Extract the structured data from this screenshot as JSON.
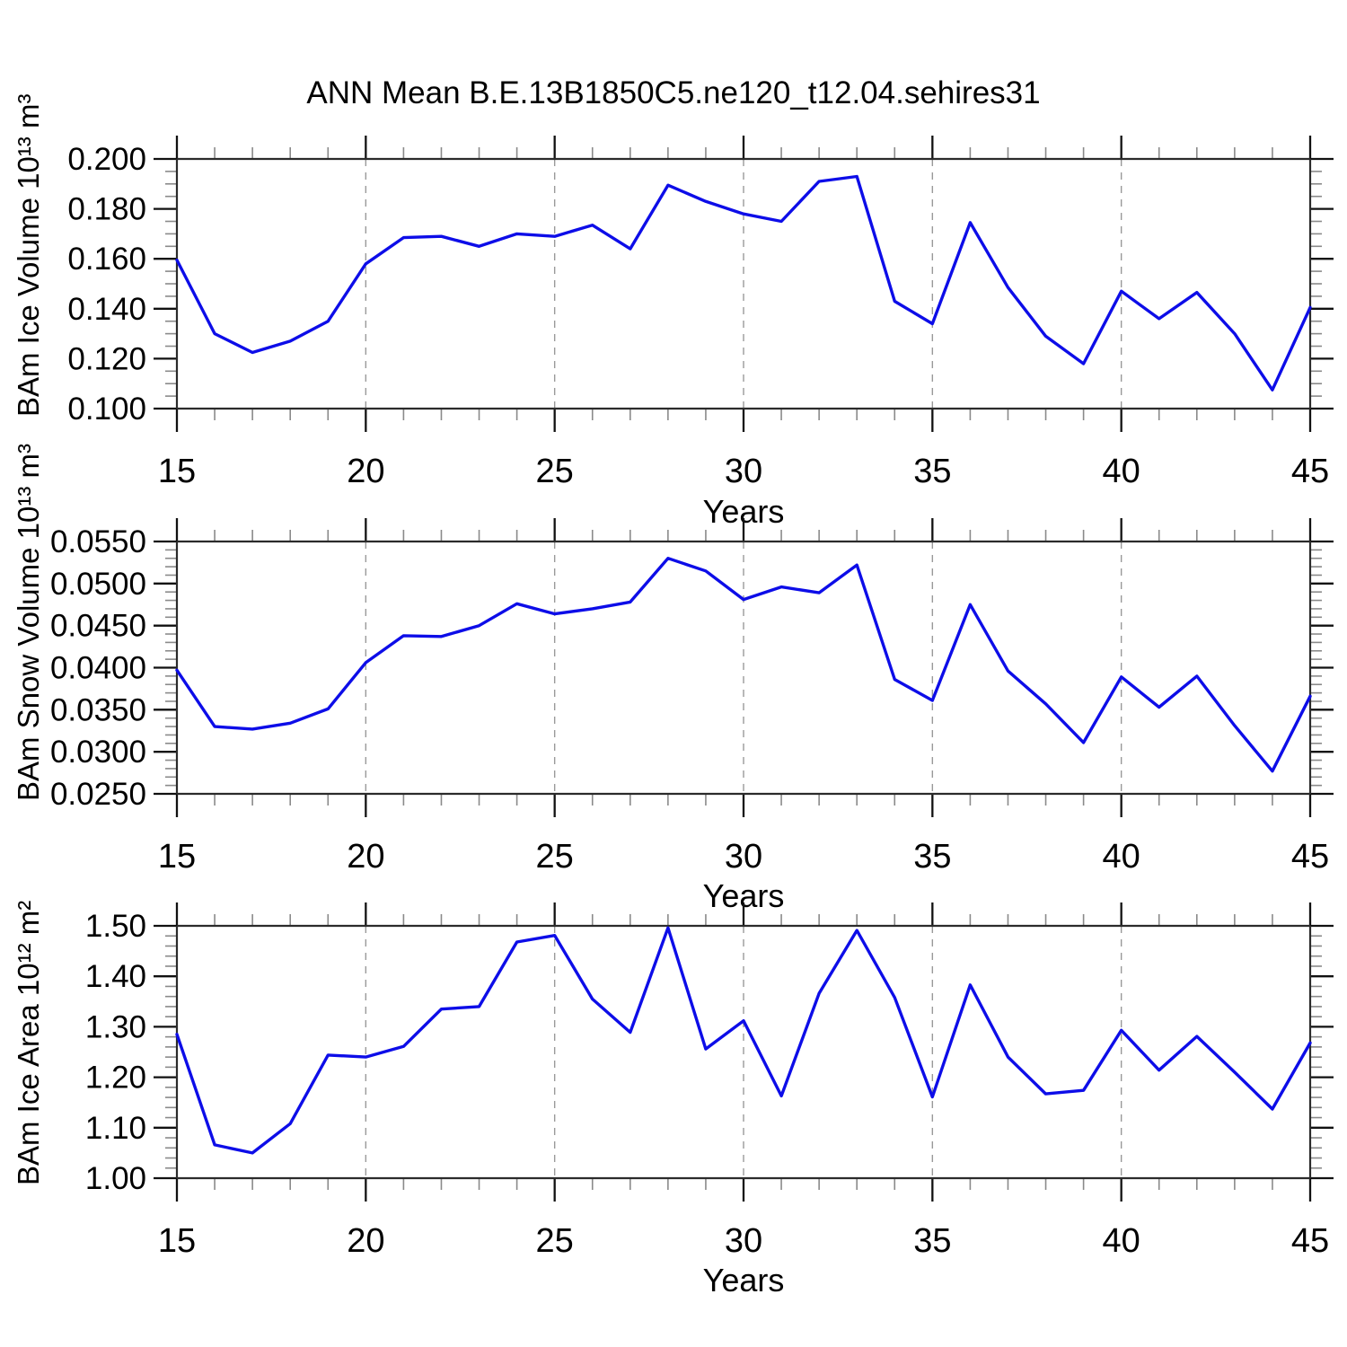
{
  "title": "ANN Mean B.E.13B1850C5.ne120_t12.04.sehires31",
  "line_color": "#0d0de8",
  "grid_color": "#999999",
  "minor_tick_color": "#8a8a8a",
  "major_tick_color": "#111111",
  "frame_color": "#2b2b2b",
  "chart_data": [
    {
      "type": "line",
      "panel": 1,
      "ylabel": "BAm Ice Volume 10¹³ m³",
      "xlabel": "Years",
      "xlim": [
        15,
        45
      ],
      "ylim": [
        0.1,
        0.2
      ],
      "xticks": [
        15,
        20,
        25,
        30,
        35,
        40,
        45
      ],
      "xtick_labels": [
        "15",
        "20",
        "25",
        "30",
        "35",
        "40",
        "45"
      ],
      "xminor": 1,
      "grid_years": [
        20,
        25,
        30,
        35,
        40
      ],
      "yticks": [
        0.2,
        0.18,
        0.16,
        0.14,
        0.12,
        0.1
      ],
      "ytick_labels": [
        "0.200",
        "0.180",
        "0.160",
        "0.140",
        "0.120",
        "0.100"
      ],
      "yminor": 0.005,
      "x": [
        15,
        16,
        17,
        18,
        19,
        20,
        21,
        22,
        23,
        24,
        25,
        26,
        27,
        28,
        29,
        30,
        31,
        32,
        33,
        34,
        35,
        36,
        37,
        38,
        39,
        40,
        41,
        42,
        43,
        44,
        45
      ],
      "values": [
        0.1595,
        0.13,
        0.1225,
        0.127,
        0.135,
        0.158,
        0.1685,
        0.169,
        0.165,
        0.17,
        0.169,
        0.1735,
        0.164,
        0.1895,
        0.183,
        0.178,
        0.175,
        0.191,
        0.193,
        0.143,
        0.134,
        0.1745,
        0.1485,
        0.129,
        0.118,
        0.147,
        0.136,
        0.1465,
        0.13,
        0.1075,
        0.1405
      ]
    },
    {
      "type": "line",
      "panel": 2,
      "ylabel": "BAm Snow Volume 10¹³ m³",
      "xlabel": "Years",
      "xlim": [
        15,
        45
      ],
      "ylim": [
        0.025,
        0.055
      ],
      "xticks": [
        15,
        20,
        25,
        30,
        35,
        40,
        45
      ],
      "xtick_labels": [
        "15",
        "20",
        "25",
        "30",
        "35",
        "40",
        "45"
      ],
      "xminor": 1,
      "grid_years": [
        20,
        25,
        30,
        35,
        40
      ],
      "yticks": [
        0.055,
        0.05,
        0.045,
        0.04,
        0.035,
        0.03,
        0.025
      ],
      "ytick_labels": [
        "0.0550",
        "0.0500",
        "0.0450",
        "0.0400",
        "0.0350",
        "0.0300",
        "0.0250"
      ],
      "yminor": 0.001,
      "x": [
        15,
        16,
        17,
        18,
        19,
        20,
        21,
        22,
        23,
        24,
        25,
        26,
        27,
        28,
        29,
        30,
        31,
        32,
        33,
        34,
        35,
        36,
        37,
        38,
        39,
        40,
        41,
        42,
        43,
        44,
        45
      ],
      "values": [
        0.0397,
        0.033,
        0.0327,
        0.0334,
        0.0351,
        0.0406,
        0.0438,
        0.0437,
        0.045,
        0.0476,
        0.0464,
        0.047,
        0.0478,
        0.053,
        0.0515,
        0.0481,
        0.0496,
        0.0489,
        0.0522,
        0.0386,
        0.0361,
        0.0475,
        0.0396,
        0.0357,
        0.0311,
        0.0389,
        0.0353,
        0.039,
        0.0331,
        0.0277,
        0.0366
      ]
    },
    {
      "type": "line",
      "panel": 3,
      "ylabel": "BAm Ice Area 10¹² m²",
      "xlabel": "Years",
      "xlim": [
        15,
        45
      ],
      "ylim": [
        1.0,
        1.5
      ],
      "xticks": [
        15,
        20,
        25,
        30,
        35,
        40,
        45
      ],
      "xtick_labels": [
        "15",
        "20",
        "25",
        "30",
        "35",
        "40",
        "45"
      ],
      "xminor": 1,
      "grid_years": [
        20,
        25,
        30,
        35,
        40
      ],
      "yticks": [
        1.5,
        1.4,
        1.3,
        1.2,
        1.1,
        1.0
      ],
      "ytick_labels": [
        "1.50",
        "1.40",
        "1.30",
        "1.20",
        "1.10",
        "1.00"
      ],
      "yminor": 0.02,
      "x": [
        15,
        16,
        17,
        18,
        19,
        20,
        21,
        22,
        23,
        24,
        25,
        26,
        27,
        28,
        29,
        30,
        31,
        32,
        33,
        34,
        35,
        36,
        37,
        38,
        39,
        40,
        41,
        42,
        43,
        44,
        45
      ],
      "values": [
        1.285,
        1.066,
        1.05,
        1.108,
        1.244,
        1.24,
        1.261,
        1.335,
        1.34,
        1.468,
        1.481,
        1.355,
        1.289,
        1.496,
        1.256,
        1.312,
        1.163,
        1.366,
        1.491,
        1.358,
        1.161,
        1.383,
        1.24,
        1.167,
        1.174,
        1.293,
        1.214,
        1.281,
        1.21,
        1.137,
        1.268
      ]
    }
  ]
}
